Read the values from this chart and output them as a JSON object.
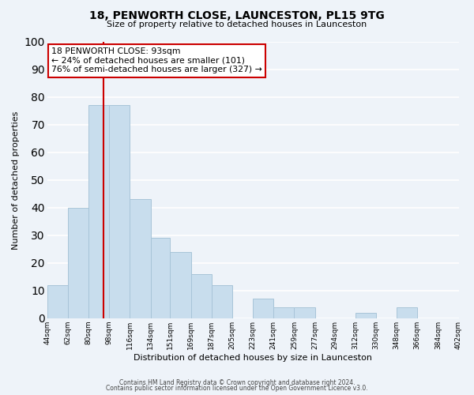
{
  "title": "18, PENWORTH CLOSE, LAUNCESTON, PL15 9TG",
  "subtitle": "Size of property relative to detached houses in Launceston",
  "xlabel": "Distribution of detached houses by size in Launceston",
  "ylabel": "Number of detached properties",
  "bar_color": "#c8dded",
  "bar_edge_color": "#a8c4d8",
  "background_color": "#eef3f9",
  "grid_color": "#ffffff",
  "property_line_x": 93,
  "property_line_color": "#cc0000",
  "annotation_title": "18 PENWORTH CLOSE: 93sqm",
  "annotation_line1": "← 24% of detached houses are smaller (101)",
  "annotation_line2": "76% of semi-detached houses are larger (327) →",
  "annotation_box_color": "#ffffff",
  "annotation_box_edge": "#cc0000",
  "bins": [
    44,
    62,
    80,
    98,
    116,
    134,
    151,
    169,
    187,
    205,
    223,
    241,
    259,
    277,
    294,
    312,
    330,
    348,
    366,
    384,
    402
  ],
  "bin_labels": [
    "44sqm",
    "62sqm",
    "80sqm",
    "98sqm",
    "116sqm",
    "134sqm",
    "151sqm",
    "169sqm",
    "187sqm",
    "205sqm",
    "223sqm",
    "241sqm",
    "259sqm",
    "277sqm",
    "294sqm",
    "312sqm",
    "330sqm",
    "348sqm",
    "366sqm",
    "384sqm",
    "402sqm"
  ],
  "counts": [
    12,
    40,
    77,
    77,
    43,
    29,
    24,
    16,
    12,
    0,
    7,
    4,
    4,
    0,
    0,
    2,
    0,
    4,
    0,
    0
  ],
  "ylim": [
    0,
    100
  ],
  "footer_line1": "Contains HM Land Registry data © Crown copyright and database right 2024.",
  "footer_line2": "Contains public sector information licensed under the Open Government Licence v3.0."
}
